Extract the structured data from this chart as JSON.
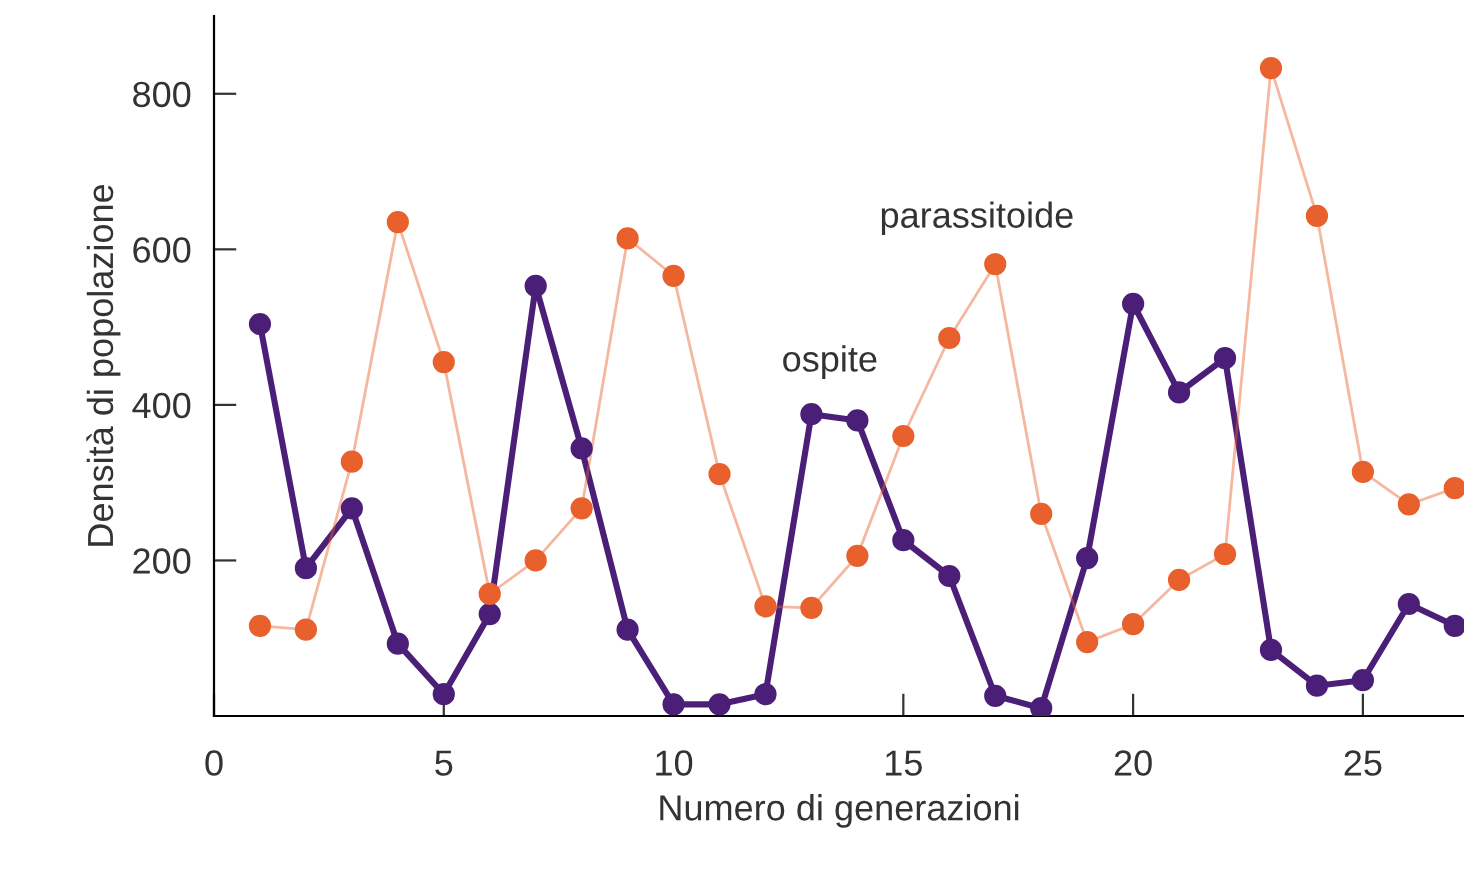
{
  "chart_data": {
    "type": "line",
    "xlabel": "Numero di generazioni",
    "ylabel": "Densità di popolazione",
    "x": [
      1,
      2,
      3,
      4,
      5,
      6,
      7,
      8,
      9,
      10,
      11,
      12,
      13,
      14,
      15,
      16,
      17,
      18,
      19,
      20,
      21,
      22,
      23,
      24,
      25,
      26,
      27
    ],
    "series": [
      {
        "name": "ospite",
        "color": "#4b1f78",
        "values": [
          504,
          190,
          267,
          93,
          28,
          131,
          553,
          344,
          111,
          15,
          15,
          28,
          388,
          380,
          226,
          180,
          26,
          10,
          203,
          530,
          416,
          460,
          85,
          39,
          46,
          144,
          116
        ]
      },
      {
        "name": "parassitoide",
        "color": "#e8602c",
        "values": [
          116,
          111,
          327,
          635,
          455,
          157,
          200,
          267,
          614,
          566,
          311,
          141,
          139,
          206,
          360,
          486,
          581,
          260,
          95,
          118,
          175,
          208,
          833,
          643,
          314,
          272,
          293
        ]
      }
    ],
    "xlim": [
      0,
      27.2
    ],
    "ylim": [
      0,
      900
    ],
    "xticks": [
      {
        "value": 0,
        "label": "0"
      },
      5,
      10,
      15,
      20,
      25
    ],
    "yticks": [
      200,
      400,
      600,
      800
    ],
    "marker": "circle",
    "grid": false,
    "legend": false
  }
}
